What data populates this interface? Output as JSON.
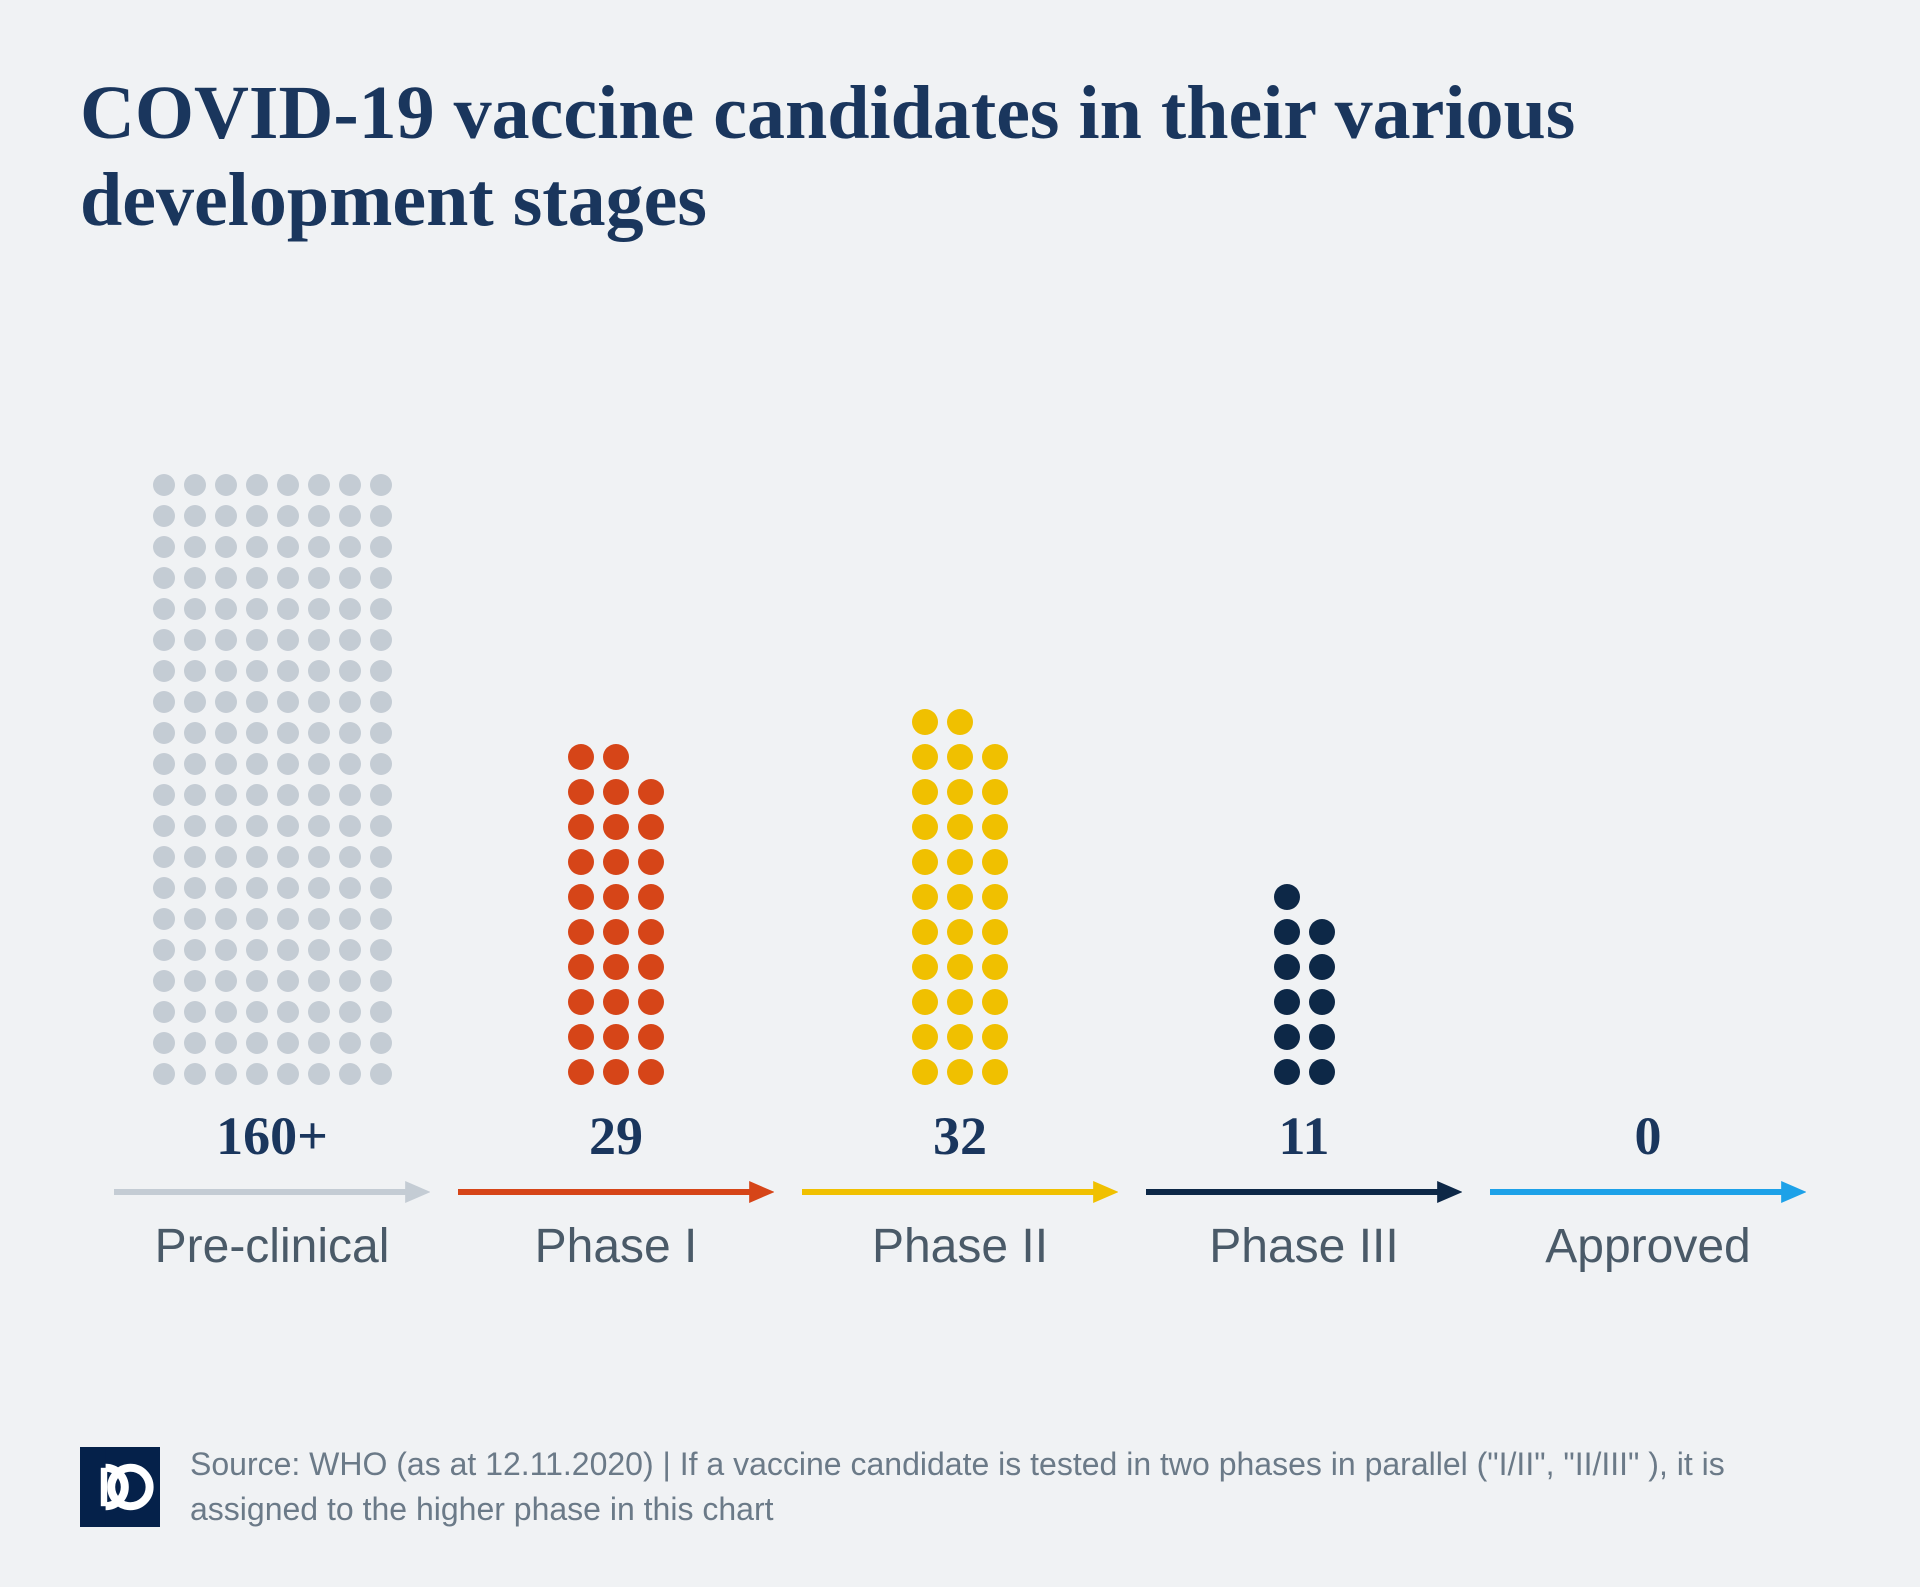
{
  "title": "COVID-19 vaccine candidates in their various development stages",
  "background_color": "#f0f2f4",
  "title_color": "#1a365d",
  "title_fontsize": 76,
  "value_color": "#1a365d",
  "value_fontsize": 54,
  "label_color": "#4a5a68",
  "label_fontsize": 48,
  "dot_gap": 9,
  "stages": [
    {
      "label": "Pre-clinical",
      "value_text": "160+",
      "dot_count": 160,
      "columns": 8,
      "dot_size": 22,
      "color": "#c4ccd4",
      "arrow_color": "#c4ccd4"
    },
    {
      "label": "Phase I",
      "value_text": "29",
      "dot_count": 29,
      "columns": 3,
      "dot_size": 26,
      "color": "#d64518",
      "arrow_color": "#d64518"
    },
    {
      "label": "Phase II",
      "value_text": "32",
      "dot_count": 32,
      "columns": 3,
      "dot_size": 26,
      "color": "#f0c000",
      "arrow_color": "#f0c000"
    },
    {
      "label": "Phase III",
      "value_text": "11",
      "dot_count": 11,
      "columns": 2,
      "dot_size": 26,
      "color": "#0d2847",
      "arrow_color": "#0d2847"
    },
    {
      "label": "Approved",
      "value_text": "0",
      "dot_count": 0,
      "columns": 2,
      "dot_size": 26,
      "color": "#1da1e8",
      "arrow_color": "#1da1e8"
    }
  ],
  "logo": {
    "bg_color": "#05214a",
    "fg_color": "#ffffff",
    "text": "DW"
  },
  "source_text": "Source: WHO (as at 12.11.2020) | If a vaccine candidate is tested in two phases in parallel (\"I/II\", \"II/III\" ), it is assigned to the higher phase in this chart",
  "source_color": "#6b7a88",
  "source_fontsize": 32
}
